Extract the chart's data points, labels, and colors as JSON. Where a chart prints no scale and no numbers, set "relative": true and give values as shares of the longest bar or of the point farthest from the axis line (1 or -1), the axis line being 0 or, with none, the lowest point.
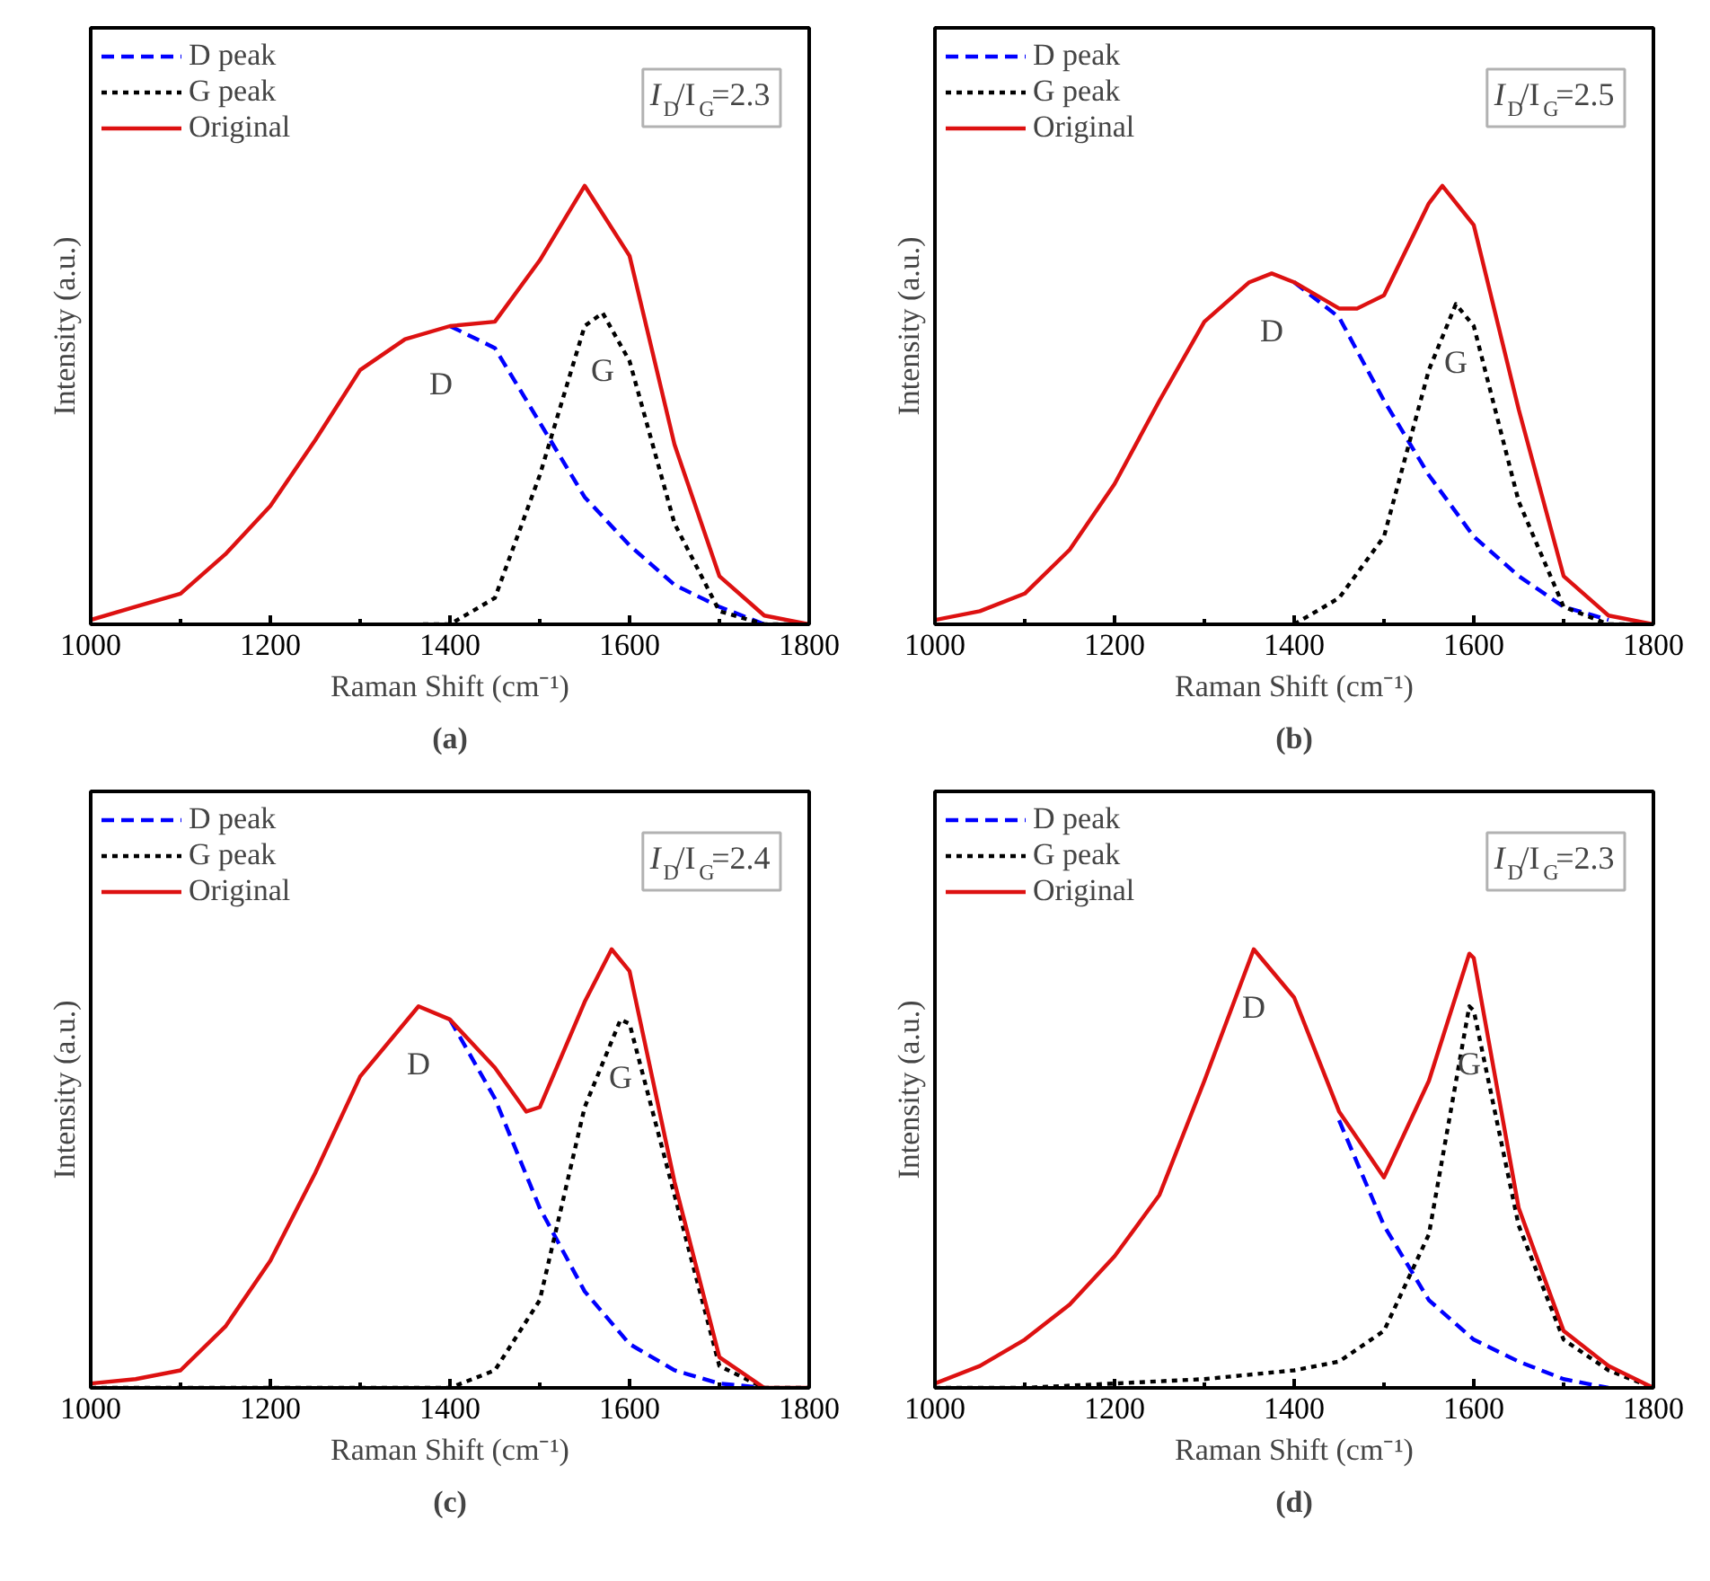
{
  "chart_data": [
    {
      "type": "line",
      "title": "(a)",
      "xlabel": "Raman Shift (cm⁻¹)",
      "ylabel": "Intensity (a.u.)",
      "relative": true,
      "legend": "top left",
      "grid": false,
      "xlim": [
        1000,
        1800
      ],
      "xticks": [
        1000,
        {
          "value": 1100,
          "label": null
        },
        1200,
        {
          "value": 1300,
          "label": null
        },
        1400,
        {
          "value": 1500,
          "label": null
        },
        1600,
        {
          "value": 1700,
          "label": null
        },
        1800
      ],
      "annotations": [
        "I$_{D}$/I$_{G}$=2.3",
        {
          "text": "D",
          "x": 1390,
          "y": 0.68
        },
        {
          "text": "G",
          "x": 1570,
          "y": 0.71
        }
      ],
      "series": [
        {
          "name": "D peak",
          "color": "#0000ff",
          "line_style": "dashed",
          "x": [
            1400,
            1450,
            1500,
            1550,
            1600,
            1650,
            1700,
            1750
          ],
          "values": [
            0.68,
            0.63,
            0.46,
            0.29,
            0.18,
            0.09,
            0.04,
            0.0
          ]
        },
        {
          "name": "G peak",
          "color": "#000000",
          "line_style": "dotted",
          "x": [
            1370,
            1400,
            1450,
            1500,
            1550,
            1570,
            1600,
            1650,
            1700,
            1750,
            1800
          ],
          "values": [
            0.0,
            0.0,
            0.06,
            0.34,
            0.68,
            0.71,
            0.6,
            0.23,
            0.03,
            0.0,
            0.0
          ]
        },
        {
          "name": "Original",
          "color": "#dd1111",
          "line_style": "solid",
          "x": [
            1000,
            1050,
            1100,
            1150,
            1200,
            1250,
            1300,
            1350,
            1400,
            1450,
            1500,
            1550,
            1600,
            1650,
            1700,
            1750,
            1800
          ],
          "values": [
            0.01,
            0.04,
            0.07,
            0.16,
            0.27,
            0.42,
            0.58,
            0.65,
            0.68,
            0.69,
            0.83,
            1.0,
            0.84,
            0.41,
            0.11,
            0.02,
            0.0
          ]
        }
      ]
    },
    {
      "type": "line",
      "title": "(b)",
      "xlabel": "Raman Shift (cm⁻¹)",
      "ylabel": "Intensity (a.u.)",
      "relative": true,
      "legend": "top left",
      "grid": false,
      "xlim": [
        1000,
        1800
      ],
      "xticks": [
        1000,
        {
          "value": 1100,
          "label": null
        },
        1200,
        {
          "value": 1300,
          "label": null
        },
        1400,
        {
          "value": 1500,
          "label": null
        },
        1600,
        {
          "value": 1700,
          "label": null
        },
        1800
      ],
      "annotations": [
        "I$_{D}$/I$_{G}$=2.5",
        {
          "text": "D",
          "x": 1375,
          "y": 0.8
        },
        {
          "text": "G",
          "x": 1580,
          "y": 0.73
        }
      ],
      "series": [
        {
          "name": "D peak",
          "color": "#0000ff",
          "line_style": "dashed",
          "x": [
            1400,
            1450,
            1500,
            1550,
            1600,
            1650,
            1700,
            1750
          ],
          "values": [
            0.78,
            0.7,
            0.51,
            0.34,
            0.2,
            0.11,
            0.04,
            0.01
          ]
        },
        {
          "name": "G peak",
          "color": "#000000",
          "line_style": "dotted",
          "x": [
            1400,
            1450,
            1500,
            1550,
            1580,
            1600,
            1650,
            1700,
            1750,
            1800
          ],
          "values": [
            0.0,
            0.06,
            0.2,
            0.58,
            0.73,
            0.68,
            0.28,
            0.04,
            0.0,
            0.0
          ]
        },
        {
          "name": "Original",
          "color": "#dd1111",
          "line_style": "solid",
          "x": [
            1000,
            1050,
            1100,
            1150,
            1200,
            1250,
            1300,
            1350,
            1375,
            1400,
            1450,
            1470,
            1500,
            1550,
            1565,
            1600,
            1650,
            1700,
            1750,
            1800
          ],
          "values": [
            0.01,
            0.03,
            0.07,
            0.17,
            0.32,
            0.51,
            0.69,
            0.78,
            0.8,
            0.78,
            0.72,
            0.72,
            0.75,
            0.96,
            1.0,
            0.91,
            0.49,
            0.11,
            0.02,
            0.0
          ]
        }
      ]
    },
    {
      "type": "line",
      "title": "(c)",
      "xlabel": "Raman Shift (cm⁻¹)",
      "ylabel": "Intensity (a.u.)",
      "relative": true,
      "legend": "top left",
      "grid": false,
      "xlim": [
        1000,
        1800
      ],
      "xticks": [
        1000,
        {
          "value": 1100,
          "label": null
        },
        1200,
        {
          "value": 1300,
          "label": null
        },
        1400,
        {
          "value": 1500,
          "label": null
        },
        1600,
        {
          "value": 1700,
          "label": null
        },
        1800
      ],
      "annotations": [
        "I$_{D}$/I$_{G}$=2.4",
        {
          "text": "D",
          "x": 1365,
          "y": 0.87
        },
        {
          "text": "G",
          "x": 1590,
          "y": 0.84
        }
      ],
      "series": [
        {
          "name": "D peak",
          "color": "#0000ff",
          "line_style": "dashed",
          "x": [
            1400,
            1450,
            1500,
            1550,
            1600,
            1650,
            1700,
            1750
          ],
          "values": [
            0.84,
            0.66,
            0.41,
            0.22,
            0.1,
            0.04,
            0.01,
            0.0
          ]
        },
        {
          "name": "G peak",
          "color": "#000000",
          "line_style": "dotted",
          "x": [
            1000,
            1100,
            1200,
            1300,
            1400,
            1450,
            1500,
            1550,
            1590,
            1600,
            1650,
            1700,
            1750,
            1800
          ],
          "values": [
            0.0,
            0.0,
            0.0,
            0.0,
            0.0,
            0.04,
            0.2,
            0.64,
            0.84,
            0.83,
            0.44,
            0.05,
            0.0,
            0.0
          ]
        },
        {
          "name": "Original",
          "color": "#dd1111",
          "line_style": "solid",
          "x": [
            1000,
            1050,
            1100,
            1150,
            1200,
            1250,
            1300,
            1365,
            1400,
            1450,
            1485,
            1500,
            1550,
            1580,
            1600,
            1650,
            1700,
            1750,
            1800
          ],
          "values": [
            0.01,
            0.02,
            0.04,
            0.14,
            0.29,
            0.49,
            0.71,
            0.87,
            0.84,
            0.73,
            0.63,
            0.64,
            0.88,
            1.0,
            0.95,
            0.47,
            0.07,
            0.0,
            0.0
          ]
        }
      ]
    },
    {
      "type": "line",
      "title": "(d)",
      "xlabel": "Raman Shift (cm⁻¹)",
      "ylabel": "Intensity (a.u.)",
      "relative": true,
      "legend": "top left",
      "grid": false,
      "xlim": [
        1000,
        1800
      ],
      "xticks": [
        1000,
        {
          "value": 1100,
          "label": null
        },
        1200,
        {
          "value": 1300,
          "label": null
        },
        1400,
        {
          "value": 1500,
          "label": null
        },
        1600,
        {
          "value": 1700,
          "label": null
        },
        1800
      ],
      "annotations": [
        "I$_{D}$/I$_{G}$=2.3",
        {
          "text": "D",
          "x": 1355,
          "y": 1.0
        },
        {
          "text": "G",
          "x": 1595,
          "y": 0.87
        }
      ],
      "series": [
        {
          "name": "D peak",
          "color": "#0000ff",
          "line_style": "dashed",
          "x": [
            1450,
            1500,
            1550,
            1600,
            1650,
            1700,
            1750
          ],
          "values": [
            0.61,
            0.37,
            0.2,
            0.11,
            0.06,
            0.02,
            0.0
          ]
        },
        {
          "name": "G peak",
          "color": "#000000",
          "line_style": "dotted",
          "x": [
            1000,
            1100,
            1200,
            1300,
            1400,
            1450,
            1500,
            1550,
            1595,
            1600,
            1650,
            1700,
            1750,
            1800
          ],
          "values": [
            0.0,
            0.0,
            0.01,
            0.02,
            0.04,
            0.06,
            0.13,
            0.35,
            0.87,
            0.86,
            0.37,
            0.11,
            0.04,
            0.0
          ]
        },
        {
          "name": "Original",
          "color": "#dd1111",
          "line_style": "solid",
          "x": [
            1000,
            1050,
            1100,
            1150,
            1200,
            1250,
            1300,
            1355,
            1400,
            1450,
            1500,
            1550,
            1595,
            1600,
            1650,
            1700,
            1750,
            1800
          ],
          "values": [
            0.01,
            0.05,
            0.11,
            0.19,
            0.3,
            0.44,
            0.7,
            1.0,
            0.89,
            0.63,
            0.48,
            0.7,
            0.99,
            0.98,
            0.41,
            0.13,
            0.05,
            0.0
          ]
        }
      ]
    }
  ]
}
